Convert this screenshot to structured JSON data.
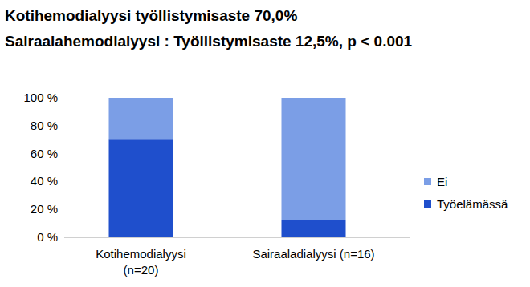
{
  "chart_data": {
    "type": "bar",
    "title": "Kotihemodialyysi työllistymisaste 70,0%",
    "subtitle": "Sairaalahemodialyysi : Työllistymisaste 12,5%, p < 0.001",
    "categories": [
      "Kotihemodialyysi\n(n=20)",
      "Sairaaladialyysi (n=16)"
    ],
    "series": [
      {
        "name": "Työelämässä",
        "color": "#1f4fcc",
        "values": [
          70,
          12.5
        ]
      },
      {
        "name": "Ei",
        "color": "#7b9ee6",
        "values": [
          30,
          87.5
        ]
      }
    ],
    "stacked": true,
    "ylim": [
      0,
      100
    ],
    "yticks": [
      {
        "value": 0,
        "label": "0 %"
      },
      {
        "value": 20,
        "label": "20 %"
      },
      {
        "value": 40,
        "label": "40 %"
      },
      {
        "value": 60,
        "label": "60 %"
      },
      {
        "value": 80,
        "label": "80 %"
      },
      {
        "value": 100,
        "label": "100 %"
      }
    ],
    "grid": false,
    "legend": "right",
    "data_labels": false
  }
}
